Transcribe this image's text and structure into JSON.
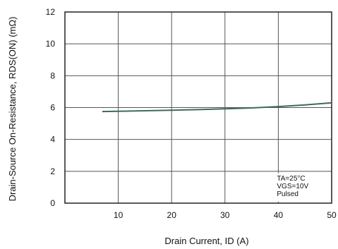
{
  "chart_data": {
    "type": "line",
    "title": "",
    "xlabel": "Drain Current, ID (A)",
    "ylabel": "Drain-Source On-Resistance, RDS(ON) (mΩ)",
    "xlim": [
      0,
      50
    ],
    "ylim": [
      0,
      12
    ],
    "xticks": [
      10,
      20,
      30,
      40,
      50
    ],
    "yticks": [
      0,
      2,
      4,
      6,
      8,
      10,
      12
    ],
    "grid": true,
    "series": [
      {
        "x": [
          7,
          10,
          15,
          20,
          25,
          30,
          35,
          40,
          45,
          50
        ],
        "y": [
          5.75,
          5.77,
          5.8,
          5.83,
          5.87,
          5.92,
          5.98,
          6.06,
          6.17,
          6.3
        ],
        "color": "#3f6b5c"
      }
    ],
    "annotations": [
      "TA=25°C",
      "VGS=10V",
      "Pulsed"
    ]
  }
}
